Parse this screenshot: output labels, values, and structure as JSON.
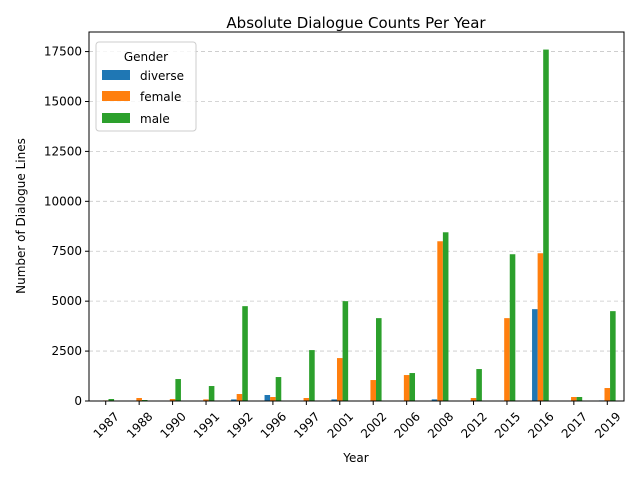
{
  "chart_data": {
    "type": "bar",
    "title": "Absolute Dialogue Counts Per Year",
    "xlabel": "Year",
    "ylabel": "Number of Dialogue Lines",
    "categories": [
      "1987",
      "1988",
      "1990",
      "1991",
      "1992",
      "1996",
      "1997",
      "2001",
      "2002",
      "2006",
      "2008",
      "2012",
      "2015",
      "2016",
      "2017",
      "2019"
    ],
    "series": [
      {
        "name": "diverse",
        "color": "#1f77b4",
        "values": [
          0,
          0,
          20,
          0,
          80,
          300,
          0,
          80,
          0,
          0,
          80,
          0,
          0,
          4600,
          0,
          30
        ]
      },
      {
        "name": "female",
        "color": "#ff7f0e",
        "values": [
          30,
          150,
          100,
          80,
          350,
          200,
          150,
          2150,
          1050,
          1300,
          8000,
          150,
          4150,
          7400,
          200,
          650
        ]
      },
      {
        "name": "male",
        "color": "#2ca02c",
        "values": [
          100,
          50,
          1100,
          750,
          4750,
          1200,
          2550,
          5000,
          4150,
          1400,
          8450,
          1600,
          7350,
          17600,
          200,
          4500
        ]
      }
    ],
    "ylim": [
      0,
      18480
    ],
    "yticks": [
      "0",
      "2500",
      "5000",
      "7500",
      "10000",
      "12500",
      "15000",
      "17500"
    ],
    "grid": "y-dashed",
    "legend": {
      "title": "Gender",
      "placement": "top-left",
      "entries": [
        "diverse",
        "female",
        "male"
      ]
    }
  }
}
